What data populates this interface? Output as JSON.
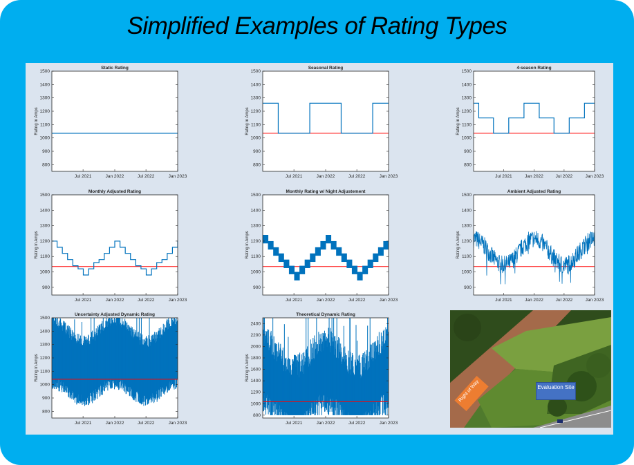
{
  "slide_title": "Simplified Examples of Rating Types",
  "colors": {
    "frame": "#00aeef",
    "panel": "#dbe4ef",
    "series": "#0072bd",
    "reference": "#ff0000",
    "photo_tag_row": "#ed7d31",
    "photo_tag_eval": "#4472c4"
  },
  "photo": {
    "tag_row": "Right of Way",
    "tag_eval": "Evaluation Site"
  },
  "chart_data": [
    {
      "id": "static",
      "type": "line",
      "title": "Static Rating",
      "ylabel": "Rating in Amps",
      "ylim": [
        750,
        1500
      ],
      "yticks": [
        800,
        900,
        1000,
        1100,
        1200,
        1300,
        1400,
        1500
      ],
      "xlim": [
        "2021-01-01",
        "2023-01-01"
      ],
      "xtick_labels": [
        "Jul 2021",
        "Jan 2022",
        "Jul 2022",
        "Jan 2023"
      ],
      "xtick_dates": [
        "2021-07-01",
        "2022-01-01",
        "2022-07-01",
        "2023-01-01"
      ],
      "generator": "static",
      "series": [
        {
          "values": [
            1035
          ]
        }
      ]
    },
    {
      "id": "seasonal",
      "type": "line",
      "title": "Seasonal Rating",
      "ylabel": "Rating in Amps",
      "ylim": [
        750,
        1500
      ],
      "yticks": [
        800,
        900,
        1000,
        1100,
        1200,
        1300,
        1400,
        1500
      ],
      "xlim": [
        "2021-01-01",
        "2023-01-01"
      ],
      "xtick_labels": [
        "Jul 2021",
        "Jan 2022",
        "Jul 2022",
        "Jan 2023"
      ],
      "xtick_dates": [
        "2021-07-01",
        "2022-01-01",
        "2022-07-01",
        "2023-01-01"
      ],
      "generator": "steps",
      "reference": 1035,
      "series": [
        {
          "step_dates": [
            "2021-01-01",
            "2021-04-01",
            "2021-10-01",
            "2022-04-01",
            "2022-10-01",
            "2023-01-01"
          ],
          "values": [
            1260,
            1035,
            1260,
            1035,
            1260
          ]
        }
      ]
    },
    {
      "id": "four-season",
      "type": "line",
      "title": "4-season Rating",
      "ylabel": "Rating in Amps",
      "ylim": [
        750,
        1500
      ],
      "yticks": [
        800,
        900,
        1000,
        1100,
        1200,
        1300,
        1400,
        1500
      ],
      "xlim": [
        "2021-01-01",
        "2023-01-01"
      ],
      "xtick_labels": [
        "Jul 2021",
        "Jan 2022",
        "Jul 2022",
        "Jan 2023"
      ],
      "xtick_dates": [
        "2021-07-01",
        "2022-01-01",
        "2022-07-01",
        "2023-01-01"
      ],
      "generator": "steps",
      "reference": 1035,
      "series": [
        {
          "step_dates": [
            "2021-01-01",
            "2021-02-01",
            "2021-05-01",
            "2021-08-01",
            "2021-11-01",
            "2022-02-01",
            "2022-05-01",
            "2022-08-01",
            "2022-11-01",
            "2023-01-01"
          ],
          "values": [
            1260,
            1150,
            1035,
            1150,
            1260,
            1150,
            1035,
            1150,
            1260
          ]
        }
      ]
    },
    {
      "id": "monthly",
      "type": "line",
      "title": "Monthly Adjusted Rating",
      "ylabel": "Rating in Amps",
      "ylim": [
        850,
        1500
      ],
      "yticks": [
        900,
        1000,
        1100,
        1200,
        1300,
        1400,
        1500
      ],
      "xlim": [
        "2021-01-01",
        "2023-01-01"
      ],
      "xtick_labels": [
        "Jul 2021",
        "Jan 2022",
        "Jul 2022",
        "Jan 2023"
      ],
      "xtick_dates": [
        "2021-07-01",
        "2022-01-01",
        "2022-07-01",
        "2023-01-01"
      ],
      "generator": "monthly",
      "reference": 1035,
      "series": [
        {
          "values": [
            1200,
            1160,
            1120,
            1080,
            1040,
            1020,
            980,
            1020,
            1060,
            1080,
            1120,
            1160,
            1200,
            1160,
            1120,
            1080,
            1040,
            1020,
            980,
            1020,
            1060,
            1080,
            1120,
            1160,
            1200
          ]
        }
      ]
    },
    {
      "id": "monthly-night",
      "type": "line",
      "title": "Monthly Rating w/ Night Adjustement",
      "ylabel": "Rating in Amps",
      "ylim": [
        850,
        1500
      ],
      "yticks": [
        900,
        1000,
        1100,
        1200,
        1300,
        1400,
        1500
      ],
      "xlim": [
        "2021-01-01",
        "2023-01-01"
      ],
      "xtick_labels": [
        "Jul 2021",
        "Jan 2022",
        "Jul 2022",
        "Jan 2023"
      ],
      "xtick_dates": [
        "2021-07-01",
        "2022-01-01",
        "2022-07-01",
        "2023-01-01"
      ],
      "generator": "monthly-band",
      "reference": 1035,
      "series": [
        {
          "values": [
            1240,
            1200,
            1160,
            1120,
            1080,
            1040,
            1000,
            1040,
            1080,
            1120,
            1160,
            1200,
            1240,
            1200,
            1160,
            1120,
            1080,
            1040,
            1000,
            1040,
            1080,
            1120,
            1160,
            1200
          ],
          "night_delta": 55
        }
      ]
    },
    {
      "id": "ambient",
      "type": "line",
      "title": "Ambient Adjusted Rating",
      "ylabel": "Rating in Amps",
      "ylim": [
        850,
        1500
      ],
      "yticks": [
        900,
        1000,
        1100,
        1200,
        1300,
        1400,
        1500
      ],
      "xlim": [
        "2021-01-01",
        "2023-01-01"
      ],
      "xtick_labels": [
        "Jul 2021",
        "Jan 2022",
        "Jul 2022",
        "Jan 2023"
      ],
      "xtick_dates": [
        "2021-07-01",
        "2022-01-01",
        "2022-07-01",
        "2023-01-01"
      ],
      "generator": "noisy",
      "reference": 1035,
      "series": [
        {
          "mean": 1130,
          "seasonal_amplitude": 85,
          "noise": 60,
          "min": 920,
          "max": 1310
        }
      ]
    },
    {
      "id": "uncertainty",
      "type": "area",
      "title": "Uncertainty Adjusted Dynamic Rating",
      "ylabel": "Rating in Amps",
      "ylim": [
        750,
        1500
      ],
      "yticks": [
        800,
        900,
        1000,
        1100,
        1200,
        1300,
        1400,
        1500
      ],
      "xlim": [
        "2021-01-01",
        "2023-01-01"
      ],
      "xtick_labels": [
        "Jul 2021",
        "Jan 2022",
        "Jul 2022",
        "Jan 2023"
      ],
      "xtick_dates": [
        "2021-07-01",
        "2022-01-01",
        "2022-07-01",
        "2023-01-01"
      ],
      "generator": "envelope",
      "reference": 1040,
      "series": [
        {
          "upper_mean": 1390,
          "lower_mean": 990,
          "seasonal_amplitude": 80,
          "noise": 45,
          "min": 770,
          "max": 1500
        }
      ]
    },
    {
      "id": "theoretical",
      "type": "area",
      "title": "Theoretical Dynamic Rating",
      "ylabel": "Rating in Amps",
      "ylim": [
        750,
        2500
      ],
      "yticks": [
        800,
        1000,
        1200,
        1400,
        1600,
        1800,
        2000,
        2200,
        2400
      ],
      "xlim": [
        "2021-01-01",
        "2023-01-01"
      ],
      "xtick_labels": [
        "Jul 2021",
        "Jan 2022",
        "Jul 2022",
        "Jan 2023"
      ],
      "xtick_dates": [
        "2021-07-01",
        "2022-01-01",
        "2022-07-01",
        "2023-01-01"
      ],
      "generator": "envelope",
      "reference": 1035,
      "series": [
        {
          "upper_mean": 1800,
          "lower_mean": 1000,
          "seasonal_amplitude": 250,
          "noise": 220,
          "min": 800,
          "max": 2500
        }
      ]
    }
  ]
}
